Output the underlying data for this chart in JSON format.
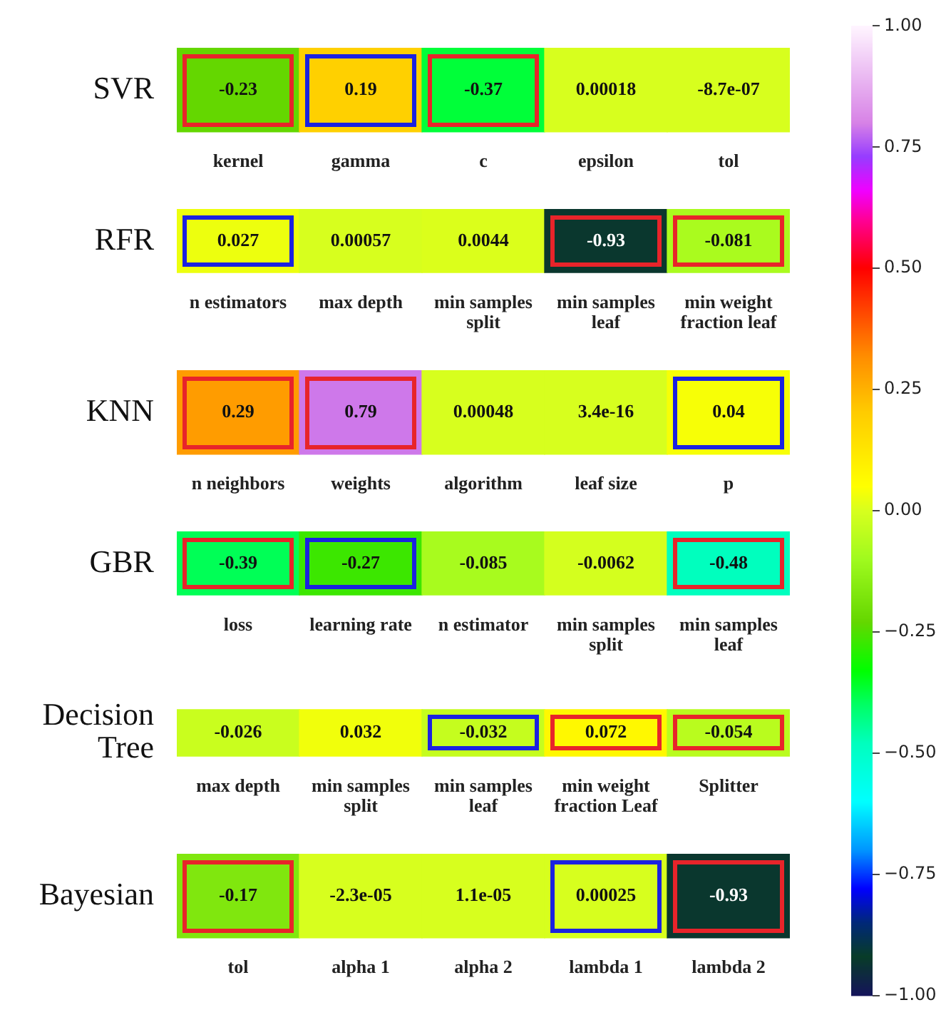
{
  "chart_data": [
    {
      "type": "heatmap",
      "categories": [
        "kernel",
        "gamma",
        "c",
        "epsilon",
        "tol"
      ],
      "y_categories": [
        "SVR"
      ],
      "cells": [
        [
          -0.23,
          0.19,
          -0.37,
          0.00018,
          -8.7e-07
        ]
      ],
      "cell_labels": [
        [
          "-0.23",
          "0.19",
          "-0.37",
          "0.00018",
          "-8.7e-07"
        ]
      ],
      "clim": [
        -1,
        1
      ],
      "cticks": [
        {
          "value": -1,
          "label": "−1.00"
        },
        {
          "value": -0.75,
          "label": "−0.75"
        },
        {
          "value": -0.5,
          "label": "−0.50"
        },
        {
          "value": -0.25,
          "label": "−0.25"
        },
        {
          "value": 0,
          "label": "0.00"
        },
        {
          "value": 0.25,
          "label": "0.25"
        },
        {
          "value": 0.5,
          "label": "0.50"
        },
        {
          "value": 0.75,
          "label": "0.75"
        },
        {
          "value": 1,
          "label": "1.00"
        }
      ]
    },
    {
      "type": "heatmap",
      "categories": [
        "n estimators",
        "max depth",
        "min samples split",
        "min samples leaf",
        "min weight fraction leaf"
      ],
      "y_categories": [
        "RFR"
      ],
      "cells": [
        [
          0.027,
          0.00057,
          0.0044,
          -0.93,
          -0.081
        ]
      ],
      "cell_labels": [
        [
          "0.027",
          "0.00057",
          "0.0044",
          "-0.93",
          "-0.081"
        ]
      ]
    },
    {
      "type": "heatmap",
      "categories": [
        "n neighbors",
        "weights",
        "algorithm",
        "leaf size",
        "p"
      ],
      "y_categories": [
        "KNN"
      ],
      "cells": [
        [
          0.29,
          0.79,
          0.00048,
          3.4e-16,
          0.04
        ]
      ],
      "cell_labels": [
        [
          "0.29",
          "0.79",
          "0.00048",
          "3.4e-16",
          "0.04"
        ]
      ]
    },
    {
      "type": "heatmap",
      "categories": [
        "loss",
        "learning rate",
        "n estimator",
        "min samples split",
        "min samples leaf"
      ],
      "y_categories": [
        "GBR"
      ],
      "cells": [
        [
          -0.39,
          -0.27,
          -0.085,
          -0.0062,
          -0.48
        ]
      ],
      "cell_labels": [
        [
          "-0.39",
          "-0.27",
          "-0.085",
          "-0.0062",
          "-0.48"
        ]
      ]
    },
    {
      "type": "heatmap",
      "categories": [
        "max depth",
        "min samples split",
        "min samples leaf",
        "min weight fraction Leaf",
        "Splitter"
      ],
      "y_categories": [
        "Decision Tree"
      ],
      "cells": [
        [
          -0.026,
          0.032,
          -0.032,
          0.072,
          -0.054
        ]
      ],
      "cell_labels": [
        [
          "-0.026",
          "0.032",
          "-0.032",
          "0.072",
          "-0.054"
        ]
      ]
    },
    {
      "type": "heatmap",
      "categories": [
        "tol",
        "alpha 1",
        "alpha 2",
        "lambda 1",
        "lambda 2"
      ],
      "y_categories": [
        "Bayesian"
      ],
      "cells": [
        [
          -0.17,
          -2.3e-05,
          1.1e-05,
          0.00025,
          -0.93
        ]
      ],
      "cell_labels": [
        [
          "-0.17",
          "-2.3e-05",
          "1.1e-05",
          "0.00025",
          "-0.93"
        ]
      ]
    }
  ]
}
